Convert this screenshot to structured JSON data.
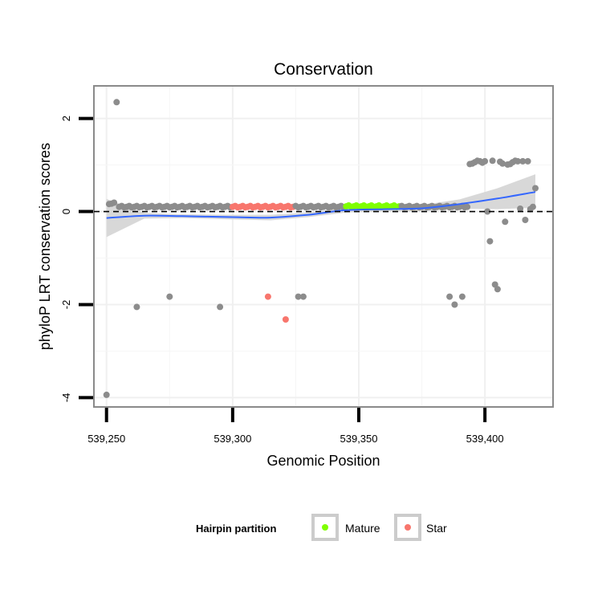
{
  "chart_data": {
    "type": "scatter",
    "title": "Conservation",
    "xlabel": "Genomic Position",
    "ylabel": "phyloP LRT conservation scores",
    "xlim": [
      539245,
      539427
    ],
    "ylim": [
      -4.2,
      2.7
    ],
    "x_ticks": [
      539250,
      539300,
      539350,
      539400
    ],
    "x_tick_labels": [
      "539,250",
      "539,300",
      "539,350",
      "539,400"
    ],
    "y_ticks": [
      -4,
      -2,
      0,
      2
    ],
    "y_tick_labels": [
      "-4",
      "-2",
      "0",
      "2"
    ],
    "grid": true,
    "reference_line": {
      "y": 0,
      "style": "dashed"
    },
    "legend": {
      "title": "Hairpin partition",
      "position": "bottom",
      "entries": [
        {
          "label": "Mature",
          "color": "#7fff00"
        },
        {
          "label": "Star",
          "color": "#f8766d"
        }
      ]
    },
    "colors": {
      "other": "#8c8c8c",
      "mature": "#7fff00",
      "star": "#f8766d",
      "smooth": "#3366ff",
      "ribbon": "#d6d6d6"
    },
    "series": [
      {
        "name": "Other",
        "color": "#8c8c8c",
        "points": [
          [
            539250,
            -3.94
          ],
          [
            539251,
            0.16
          ],
          [
            539252,
            0.17
          ],
          [
            539253,
            0.19
          ],
          [
            539254,
            2.35
          ],
          [
            539262,
            -2.05
          ],
          [
            539275,
            -1.83
          ],
          [
            539295,
            -2.05
          ],
          [
            539326,
            -1.83
          ],
          [
            539328,
            -1.83
          ],
          [
            539386,
            -1.83
          ],
          [
            539388,
            -2.0
          ],
          [
            539391,
            -1.83
          ],
          [
            539394,
            1.02
          ],
          [
            539395,
            1.03
          ],
          [
            539396,
            1.06
          ],
          [
            539397,
            1.09
          ],
          [
            539398,
            1.08
          ],
          [
            539399,
            1.05
          ],
          [
            539400,
            1.08
          ],
          [
            539401,
            0.0
          ],
          [
            539402,
            -0.64
          ],
          [
            539403,
            1.09
          ],
          [
            539404,
            -1.57
          ],
          [
            539405,
            -1.67
          ],
          [
            539406,
            1.07
          ],
          [
            539407,
            1.03
          ],
          [
            539408,
            -0.22
          ],
          [
            539409,
            1.01
          ],
          [
            539410,
            1.02
          ],
          [
            539411,
            1.06
          ],
          [
            539412,
            1.09
          ],
          [
            539413,
            1.08
          ],
          [
            539414,
            0.06
          ],
          [
            539415,
            1.08
          ],
          [
            539416,
            -0.18
          ],
          [
            539417,
            1.08
          ],
          [
            539418,
            0.05
          ],
          [
            539419,
            0.1
          ],
          [
            539420,
            0.5
          ]
        ]
      },
      {
        "name": "Star",
        "color": "#f8766d",
        "points": [
          [
            539314,
            -1.83
          ],
          [
            539321,
            -2.32
          ]
        ]
      },
      {
        "name": "Mature",
        "color": "#7fff00",
        "points": []
      }
    ],
    "baseline_bands": [
      {
        "group": "Other",
        "x_start": 539255,
        "x_end": 539299,
        "y": 0.1
      },
      {
        "group": "Star",
        "x_start": 539300,
        "x_end": 539324,
        "y": 0.1
      },
      {
        "group": "Other",
        "x_start": 539325,
        "x_end": 539344,
        "y": 0.1
      },
      {
        "group": "Mature",
        "x_start": 539345,
        "x_end": 539366,
        "y": 0.11
      },
      {
        "group": "Other",
        "x_start": 539367,
        "x_end": 539393,
        "y": 0.1
      }
    ],
    "smooth": {
      "x": [
        539250,
        539265,
        539280,
        539300,
        539315,
        539330,
        539345,
        539360,
        539375,
        539390,
        539405,
        539420
      ],
      "y": [
        -0.14,
        -0.09,
        -0.1,
        -0.12,
        -0.13,
        -0.07,
        0.03,
        0.05,
        0.07,
        0.16,
        0.28,
        0.42
      ],
      "lower": [
        -0.55,
        -0.15,
        -0.14,
        -0.17,
        -0.19,
        -0.12,
        -0.02,
        0.0,
        0.0,
        0.06,
        0.05,
        0.08
      ],
      "upper": [
        0.27,
        -0.03,
        -0.06,
        -0.07,
        -0.07,
        -0.02,
        0.08,
        0.1,
        0.14,
        0.26,
        0.5,
        0.8
      ]
    }
  }
}
